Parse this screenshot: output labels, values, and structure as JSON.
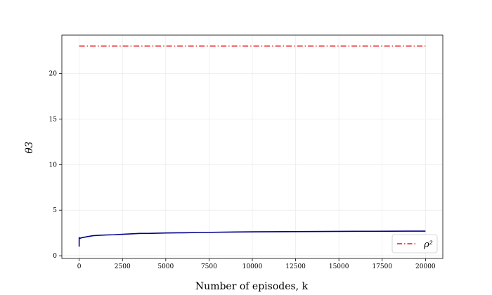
{
  "chart_data": {
    "type": "line",
    "title": "",
    "xlabel": "Number of episodes, k",
    "ylabel": "θ3",
    "xlim": [
      -1000,
      21000
    ],
    "ylim": [
      -0.3,
      24.2
    ],
    "xticks": [
      0,
      2500,
      5000,
      7500,
      10000,
      12500,
      15000,
      17500,
      20000
    ],
    "yticks": [
      0,
      5,
      10,
      15,
      20
    ],
    "grid": true,
    "legend": {
      "placement": "lower-right",
      "entries": [
        "ρ²"
      ]
    },
    "series": [
      {
        "name": "θ3",
        "color": "#00008b",
        "style": "solid",
        "x": [
          0,
          1,
          20,
          200,
          500,
          800,
          1200,
          1600,
          2000,
          2500,
          3000,
          3500,
          4000,
          5000,
          6000,
          7000,
          8000,
          9000,
          10000,
          11000,
          12000,
          13000,
          14000,
          15000,
          16000,
          17000,
          18000,
          19000,
          20000
        ],
        "y": [
          1.0,
          2.0,
          1.9,
          2.0,
          2.1,
          2.2,
          2.25,
          2.28,
          2.3,
          2.35,
          2.4,
          2.45,
          2.45,
          2.5,
          2.52,
          2.55,
          2.58,
          2.6,
          2.62,
          2.63,
          2.64,
          2.65,
          2.66,
          2.67,
          2.68,
          2.68,
          2.69,
          2.7,
          2.7
        ]
      },
      {
        "name": "ρ²",
        "color": "#e41a1c",
        "style": "dashdot",
        "x": [
          0,
          20000
        ],
        "y": [
          23.0,
          23.0
        ]
      }
    ]
  }
}
